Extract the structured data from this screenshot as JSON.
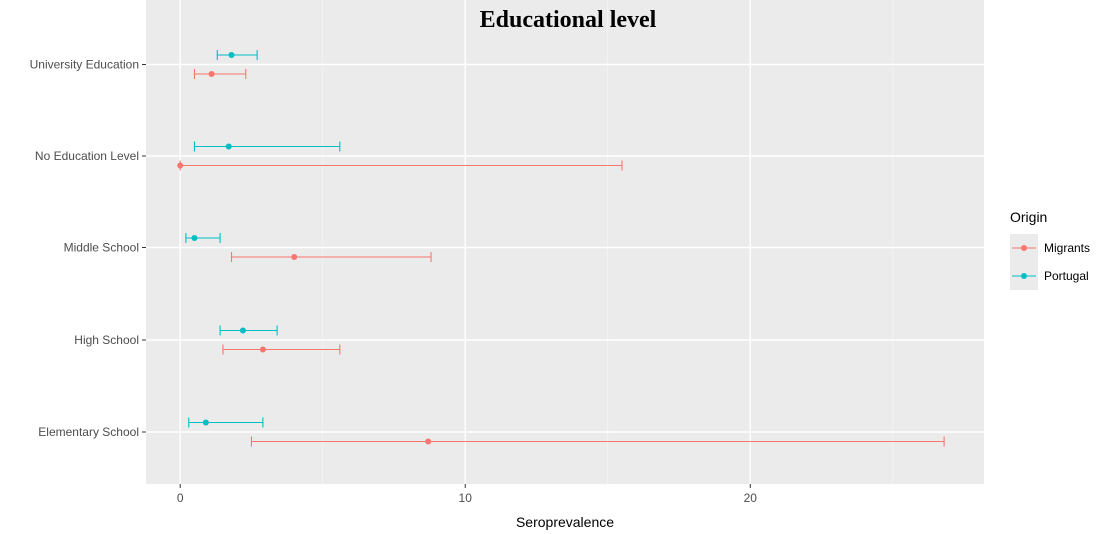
{
  "chart_data": {
    "type": "errorbar",
    "orientation": "horizontal",
    "title": "Educational level",
    "xlabel": "Seroprevalence",
    "ylabel": "",
    "xlim": [
      -1.2,
      28.2
    ],
    "x_ticks": [
      0,
      10,
      20
    ],
    "categories": [
      "University Education",
      "No Education Level",
      "Middle School",
      "High School",
      "Elementary School"
    ],
    "legend": {
      "title": "Origin",
      "position": "right"
    },
    "grid": true,
    "series": [
      {
        "name": "Portugal",
        "color": "#00BFC4",
        "points": [
          {
            "category": "University Education",
            "estimate": 1.8,
            "lower": 1.3,
            "upper": 2.7
          },
          {
            "category": "No Education Level",
            "estimate": 1.7,
            "lower": 0.5,
            "upper": 5.6
          },
          {
            "category": "Middle School",
            "estimate": 0.5,
            "lower": 0.2,
            "upper": 1.4
          },
          {
            "category": "High School",
            "estimate": 2.2,
            "lower": 1.4,
            "upper": 3.4
          },
          {
            "category": "Elementary School",
            "estimate": 0.9,
            "lower": 0.3,
            "upper": 2.9
          }
        ]
      },
      {
        "name": "Migrants",
        "color": "#F8766D",
        "points": [
          {
            "category": "University Education",
            "estimate": 1.1,
            "lower": 0.5,
            "upper": 2.3
          },
          {
            "category": "No Education Level",
            "estimate": 0.0,
            "lower": 0.0,
            "upper": 15.5
          },
          {
            "category": "Middle School",
            "estimate": 4.0,
            "lower": 1.8,
            "upper": 8.8
          },
          {
            "category": "High School",
            "estimate": 2.9,
            "lower": 1.5,
            "upper": 5.6
          },
          {
            "category": "Elementary School",
            "estimate": 8.7,
            "lower": 2.5,
            "upper": 26.8
          }
        ]
      }
    ],
    "legend_order": [
      "Migrants",
      "Portugal"
    ]
  }
}
